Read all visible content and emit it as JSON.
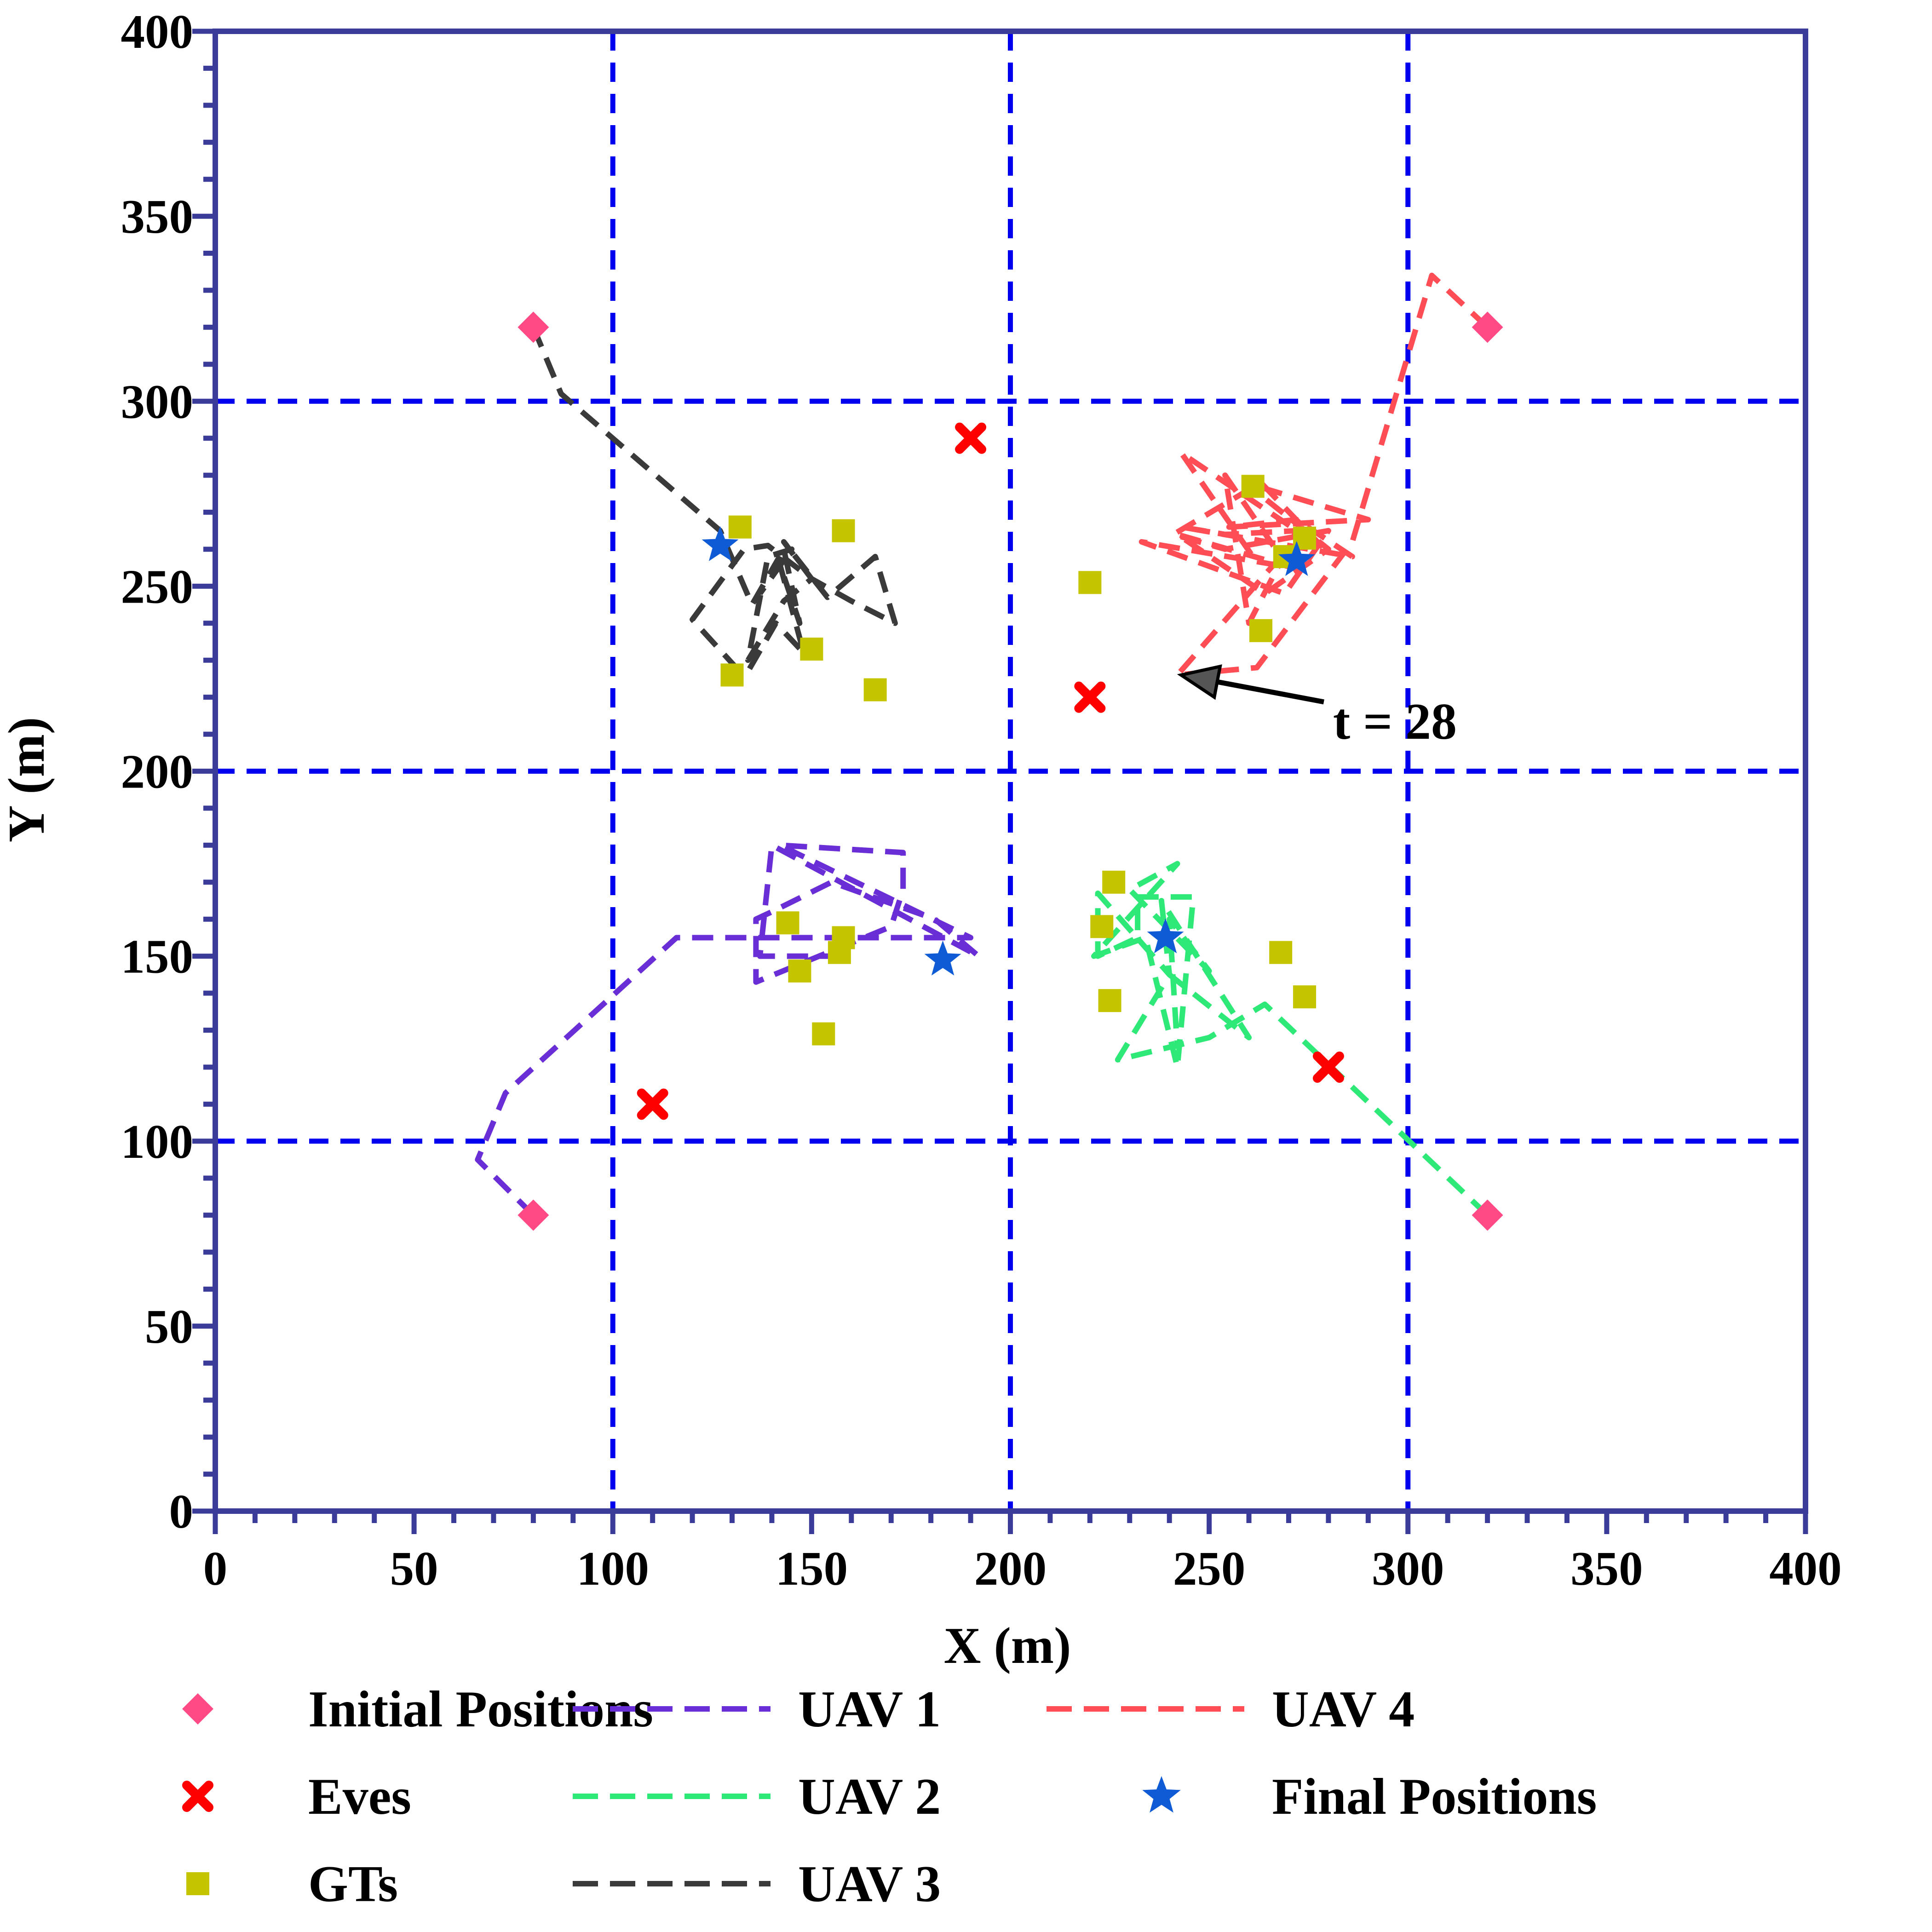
{
  "chart_data": {
    "type": "scatter",
    "xlabel": "X (m)",
    "ylabel": "Y (m)",
    "xlim": [
      0,
      400
    ],
    "ylim": [
      0,
      400
    ],
    "xticks": [
      "0",
      "50",
      "100",
      "150",
      "200",
      "250",
      "300",
      "350",
      "400"
    ],
    "yticks": [
      "0",
      "50",
      "100",
      "150",
      "200",
      "250",
      "300",
      "350",
      "400"
    ],
    "grid_lines": [
      100,
      200,
      300
    ],
    "grid_color": "#0000ee",
    "axis_color": "#3b3b9a",
    "legend_position": "bottom",
    "annotation": {
      "text": "t = 28",
      "target": [
        242,
        226
      ],
      "text_at": [
        280,
        215
      ]
    },
    "initial_positions": {
      "name": "Initial Positions",
      "color": "#ff4a86",
      "points": [
        [
          80,
          320
        ],
        [
          320,
          320
        ],
        [
          80,
          80
        ],
        [
          320,
          80
        ]
      ]
    },
    "eves": {
      "name": "Eves",
      "color": "#ff0000",
      "points": [
        [
          190,
          290
        ],
        [
          220,
          220
        ],
        [
          110,
          110
        ],
        [
          280,
          120
        ]
      ]
    },
    "gts": {
      "name": "GTs",
      "color": "#c4c400",
      "points": [
        [
          132,
          266
        ],
        [
          158,
          265
        ],
        [
          130,
          226
        ],
        [
          150,
          233
        ],
        [
          166,
          222
        ],
        [
          261,
          277
        ],
        [
          274,
          263
        ],
        [
          269,
          258
        ],
        [
          263,
          238
        ],
        [
          220,
          251
        ],
        [
          144,
          159
        ],
        [
          158,
          155
        ],
        [
          157,
          151
        ],
        [
          147,
          146
        ],
        [
          153,
          129
        ],
        [
          226,
          170
        ],
        [
          223,
          158
        ],
        [
          225,
          138
        ],
        [
          268,
          151
        ],
        [
          274,
          139
        ]
      ]
    },
    "final_positions": {
      "name": "Final Positions",
      "color": "#0f5bd6",
      "points": [
        [
          127,
          261
        ],
        [
          272,
          257
        ],
        [
          183,
          149
        ],
        [
          239,
          155
        ]
      ]
    },
    "series": [
      {
        "name": "UAV 1",
        "color": "#6a2ed6",
        "x": [
          80,
          66,
          73,
          116,
          190,
          142,
          173,
          173,
          170,
          136,
          136,
          140,
          155,
          181,
          192,
          140,
          137,
          160
        ],
        "y": [
          80,
          95,
          113,
          155,
          155,
          180,
          178,
          168,
          158,
          143,
          160,
          162,
          170,
          160,
          150,
          180,
          150,
          150
        ]
      },
      {
        "name": "UAV 2",
        "color": "#2ee878",
        "x": [
          320,
          264,
          250,
          227,
          240,
          260,
          238,
          240,
          222,
          222,
          232,
          232,
          246,
          242,
          234,
          221,
          242,
          230,
          250,
          240,
          242
        ],
        "y": [
          80,
          137,
          128,
          122,
          145,
          128,
          165,
          145,
          167,
          150,
          155,
          166,
          166,
          120,
          155,
          150,
          175,
          168,
          146,
          160,
          125
        ]
      },
      {
        "name": "UAV 3",
        "color": "#3a3a3a",
        "x": [
          80,
          87,
          127,
          135,
          143,
          147,
          142,
          148,
          141,
          134,
          131,
          120,
          133,
          139,
          150,
          143,
          154,
          166,
          171,
          160,
          150,
          143,
          134,
          139,
          145,
          137
        ],
        "y": [
          320,
          302,
          265,
          245,
          260,
          240,
          256,
          232,
          240,
          227,
          228,
          241,
          260,
          261,
          252,
          262,
          247,
          258,
          240,
          246,
          252,
          246,
          230,
          258,
          260,
          248
        ]
      },
      {
        "name": "UAV 4",
        "color": "#ff4d55",
        "x": [
          320,
          306,
          286,
          262,
          242,
          268,
          254,
          260,
          272,
          254,
          243,
          286,
          272,
          255,
          290,
          259,
          280,
          264,
          242,
          271,
          233,
          269,
          280,
          254,
          241,
          263,
          279,
          243,
          261
        ],
        "y": [
          320,
          334,
          262,
          228,
          226,
          258,
          280,
          240,
          265,
          264,
          266,
          258,
          268,
          266,
          268,
          278,
          260,
          248,
          264,
          255,
          262,
          248,
          265,
          260,
          264,
          278,
          260,
          286,
          258
        ]
      }
    ],
    "legend": [
      {
        "label": "Initial Positions",
        "kind": "diamond",
        "ref": "initial_positions"
      },
      {
        "label": "Eves",
        "kind": "cross",
        "ref": "eves"
      },
      {
        "label": "GTs",
        "kind": "square",
        "ref": "gts"
      },
      {
        "label": "UAV 1",
        "kind": "line",
        "ref": "UAV 1"
      },
      {
        "label": "UAV 2",
        "kind": "line",
        "ref": "UAV 2"
      },
      {
        "label": "UAV 3",
        "kind": "line",
        "ref": "UAV 3"
      },
      {
        "label": "UAV 4",
        "kind": "line",
        "ref": "UAV 4"
      },
      {
        "label": "Final Positions",
        "kind": "star",
        "ref": "final_positions"
      }
    ]
  }
}
